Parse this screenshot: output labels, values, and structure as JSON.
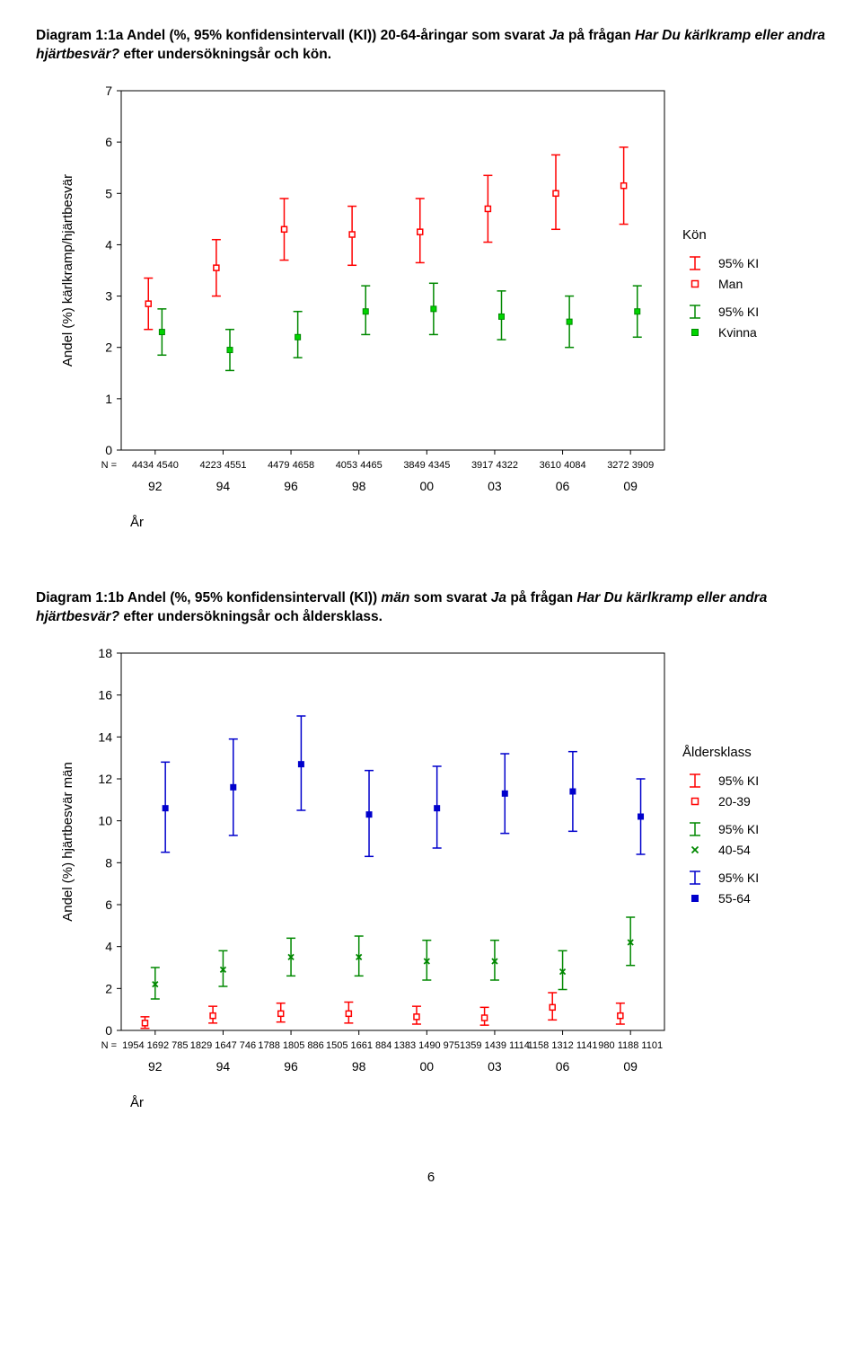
{
  "page_number": "6",
  "chart_a": {
    "type": "errorbar-scatter",
    "caption_prefix": "Diagram 1:1a Andel (%, 95% konfidensintervall (KI)) 20-64-åringar som svarat ",
    "caption_italic1": "Ja",
    "caption_mid": " på frågan ",
    "caption_italic2": "Har Du kärlkramp eller andra hjärtbesvär?",
    "caption_suffix": " efter undersökningsår och kön.",
    "y_title": "Andel (%) kärlkramp/hjärtbesvär",
    "x_title": "År",
    "n_prefix": "N =",
    "legend_title": "Kön",
    "ylim": [
      0,
      7
    ],
    "yticks": [
      0,
      1,
      2,
      3,
      4,
      5,
      6,
      7
    ],
    "categories": [
      "92",
      "94",
      "96",
      "98",
      "00",
      "03",
      "06",
      "09"
    ],
    "n_labels": [
      "4434 4540",
      "4223 4551",
      "4479 4658",
      "4053 4465",
      "3849 4345",
      "3917 4322",
      "3610 4084",
      "3272 3909"
    ],
    "colors": {
      "man_stroke": "#ff0000",
      "man_fill": "#ffffff",
      "kvinna_fill": "#00d400",
      "kvinna_stroke": "#008800"
    },
    "marker_size": 6,
    "cap_width": 10,
    "line_width": 1.5,
    "series": [
      {
        "name": "Man",
        "color_stroke": "#ff0000",
        "color_fill": "#ffffff",
        "marker": "open-square",
        "legend_pre": "95% KI",
        "points": [
          {
            "x": "92",
            "y": 2.85,
            "lo": 2.35,
            "hi": 3.35
          },
          {
            "x": "94",
            "y": 3.55,
            "lo": 3.0,
            "hi": 4.1
          },
          {
            "x": "96",
            "y": 4.3,
            "lo": 3.7,
            "hi": 4.9
          },
          {
            "x": "98",
            "y": 4.2,
            "lo": 3.6,
            "hi": 4.75
          },
          {
            "x": "00",
            "y": 4.25,
            "lo": 3.65,
            "hi": 4.9
          },
          {
            "x": "03",
            "y": 4.7,
            "lo": 4.05,
            "hi": 5.35
          },
          {
            "x": "06",
            "y": 5.0,
            "lo": 4.3,
            "hi": 5.75
          },
          {
            "x": "09",
            "y": 5.15,
            "lo": 4.4,
            "hi": 5.9
          }
        ]
      },
      {
        "name": "Kvinna",
        "color_stroke": "#008800",
        "color_fill": "#00d400",
        "marker": "filled-square",
        "legend_pre": "95% KI",
        "points": [
          {
            "x": "92",
            "y": 2.3,
            "lo": 1.85,
            "hi": 2.75
          },
          {
            "x": "94",
            "y": 1.95,
            "lo": 1.55,
            "hi": 2.35
          },
          {
            "x": "96",
            "y": 2.2,
            "lo": 1.8,
            "hi": 2.7
          },
          {
            "x": "98",
            "y": 2.7,
            "lo": 2.25,
            "hi": 3.2
          },
          {
            "x": "00",
            "y": 2.75,
            "lo": 2.25,
            "hi": 3.25
          },
          {
            "x": "03",
            "y": 2.6,
            "lo": 2.15,
            "hi": 3.1
          },
          {
            "x": "06",
            "y": 2.5,
            "lo": 2.0,
            "hi": 3.0
          },
          {
            "x": "09",
            "y": 2.7,
            "lo": 2.2,
            "hi": 3.2
          }
        ]
      }
    ]
  },
  "chart_b": {
    "type": "errorbar-scatter",
    "caption_prefix": "Diagram 1:1b Andel (%, 95% konfidensintervall (KI)) ",
    "caption_italic0": "män",
    "caption_mid1": " som svarat ",
    "caption_italic1": "Ja",
    "caption_mid2": " på frågan ",
    "caption_italic2": "Har Du kärlkramp eller andra hjärtbesvär?",
    "caption_suffix": " efter undersökningsår och åldersklass.",
    "y_title": "Andel (%) hjärtbesvär män",
    "x_title": "År",
    "n_prefix": "N =",
    "legend_title": "Åldersklass",
    "ylim": [
      0,
      18
    ],
    "yticks": [
      0,
      2,
      4,
      6,
      8,
      10,
      12,
      14,
      16,
      18
    ],
    "categories": [
      "92",
      "94",
      "96",
      "98",
      "00",
      "03",
      "06",
      "09"
    ],
    "n_labels": [
      "1954 1692 785",
      "1829 1647 746",
      "1788 1805 886",
      "1505 1661 884",
      "1383 1490 975",
      "1359 1439 1114",
      "1158 1312 1141",
      "980 1188 1101"
    ],
    "colors": {
      "s1_stroke": "#ff0000",
      "s1_fill": "#ffffff",
      "s2_stroke": "#008800",
      "s2_fill": "#00d400",
      "s3_stroke": "#0000cc",
      "s3_fill": "#0000cc"
    },
    "marker_size": 6,
    "cap_width": 10,
    "line_width": 1.5,
    "series": [
      {
        "name": "20-39",
        "legend_pre": "95% KI",
        "color_stroke": "#ff0000",
        "color_fill": "#ffffff",
        "marker": "open-square",
        "xoff": -0.15,
        "points": [
          {
            "x": "92",
            "y": 0.35,
            "lo": 0.1,
            "hi": 0.65
          },
          {
            "x": "94",
            "y": 0.7,
            "lo": 0.35,
            "hi": 1.15
          },
          {
            "x": "96",
            "y": 0.8,
            "lo": 0.4,
            "hi": 1.3
          },
          {
            "x": "98",
            "y": 0.8,
            "lo": 0.35,
            "hi": 1.35
          },
          {
            "x": "00",
            "y": 0.65,
            "lo": 0.3,
            "hi": 1.15
          },
          {
            "x": "03",
            "y": 0.6,
            "lo": 0.25,
            "hi": 1.1
          },
          {
            "x": "06",
            "y": 1.1,
            "lo": 0.5,
            "hi": 1.8
          },
          {
            "x": "09",
            "y": 0.7,
            "lo": 0.3,
            "hi": 1.3
          }
        ]
      },
      {
        "name": "40-54",
        "legend_pre": "95% KI",
        "color_stroke": "#008800",
        "color_fill": "none",
        "marker": "x",
        "xoff": 0,
        "points": [
          {
            "x": "92",
            "y": 2.2,
            "lo": 1.5,
            "hi": 3.0
          },
          {
            "x": "94",
            "y": 2.9,
            "lo": 2.1,
            "hi": 3.8
          },
          {
            "x": "96",
            "y": 3.5,
            "lo": 2.6,
            "hi": 4.4
          },
          {
            "x": "98",
            "y": 3.5,
            "lo": 2.6,
            "hi": 4.5
          },
          {
            "x": "00",
            "y": 3.3,
            "lo": 2.4,
            "hi": 4.3
          },
          {
            "x": "03",
            "y": 3.3,
            "lo": 2.4,
            "hi": 4.3
          },
          {
            "x": "06",
            "y": 2.8,
            "lo": 1.95,
            "hi": 3.8
          },
          {
            "x": "09",
            "y": 4.2,
            "lo": 3.1,
            "hi": 5.4
          }
        ]
      },
      {
        "name": "55-64",
        "legend_pre": "95% KI",
        "color_stroke": "#0000cc",
        "color_fill": "#0000cc",
        "marker": "filled-square",
        "xoff": 0.15,
        "points": [
          {
            "x": "92",
            "y": 10.6,
            "lo": 8.5,
            "hi": 12.8
          },
          {
            "x": "94",
            "y": 11.6,
            "lo": 9.3,
            "hi": 13.9
          },
          {
            "x": "96",
            "y": 12.7,
            "lo": 10.5,
            "hi": 15.0
          },
          {
            "x": "98",
            "y": 10.3,
            "lo": 8.3,
            "hi": 12.4
          },
          {
            "x": "00",
            "y": 10.6,
            "lo": 8.7,
            "hi": 12.6
          },
          {
            "x": "03",
            "y": 11.3,
            "lo": 9.4,
            "hi": 13.2
          },
          {
            "x": "06",
            "y": 11.4,
            "lo": 9.5,
            "hi": 13.3
          },
          {
            "x": "09",
            "y": 10.2,
            "lo": 8.4,
            "hi": 12.0
          }
        ]
      }
    ]
  }
}
